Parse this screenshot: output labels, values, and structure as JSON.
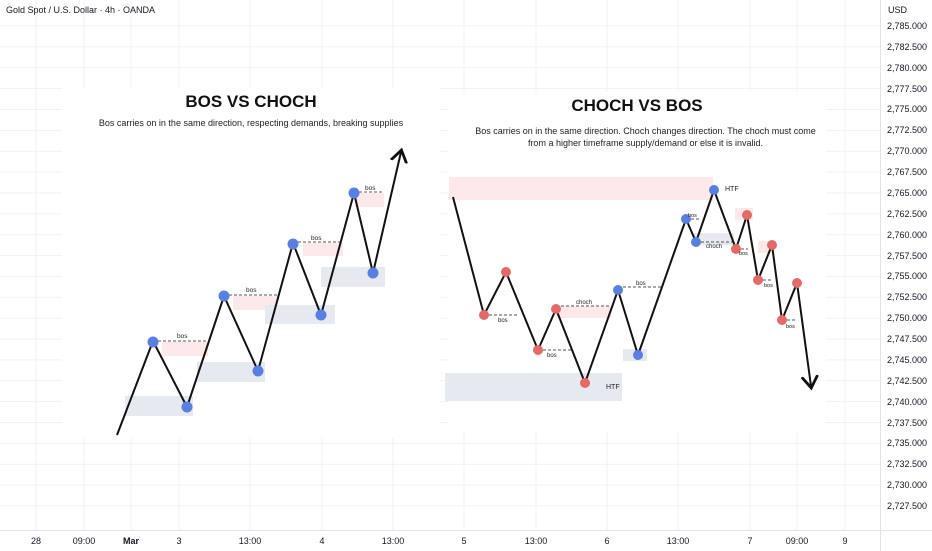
{
  "header": {
    "symbol": "Gold Spot / U.S. Dollar · 4h · OANDA",
    "currency": "USD"
  },
  "price_axis": {
    "ticks": [
      "2,785.000",
      "2,782.500",
      "2,780.000",
      "2,777.500",
      "2,775.000",
      "2,772.500",
      "2,770.000",
      "2,767.500",
      "2,765.000",
      "2,762.500",
      "2,760.000",
      "2,757.500",
      "2,755.000",
      "2,752.500",
      "2,750.000",
      "2,747.500",
      "2,745.000",
      "2,742.500",
      "2,740.000",
      "2,737.500",
      "2,735.000",
      "2,732.500",
      "2,730.000",
      "2,727.500"
    ]
  },
  "time_axis": {
    "ticks": [
      {
        "label": "28",
        "bold": false
      },
      {
        "label": "09:00",
        "bold": false
      },
      {
        "label": "Mar",
        "bold": true
      },
      {
        "label": "3",
        "bold": false
      },
      {
        "label": "13:00",
        "bold": false
      },
      {
        "label": "4",
        "bold": false
      },
      {
        "label": "13:00",
        "bold": false
      },
      {
        "label": "5",
        "bold": false
      },
      {
        "label": "13:00",
        "bold": false
      },
      {
        "label": "6",
        "bold": false
      },
      {
        "label": "13:00",
        "bold": false
      },
      {
        "label": "7",
        "bold": false
      },
      {
        "label": "09:00",
        "bold": false
      },
      {
        "label": "9",
        "bold": false
      }
    ]
  },
  "left_panel": {
    "title": "BOS VS CHOCH",
    "subtitle": "Bos carries on in the same direction, respecting demands, breaking supplies",
    "labels": [
      "bos",
      "bos",
      "bos",
      "bos"
    ]
  },
  "right_panel": {
    "title": "CHOCH VS BOS",
    "subtitle": "Bos carries on in the same direction. Choch changes direction. The choch must come from a higher timeframe supply/demand or else it is invalid.",
    "labels": [
      "HTF",
      "HTF",
      "bos",
      "bos",
      "choch",
      "bos",
      "bos",
      "choch",
      "bos",
      "bos",
      "bos"
    ]
  },
  "colors": {
    "supply": "#fde8ea",
    "demand": "#e6e9f0",
    "bull_point": "#5b7fe0",
    "bear_point": "#e46a6a",
    "line": "#111111"
  }
}
